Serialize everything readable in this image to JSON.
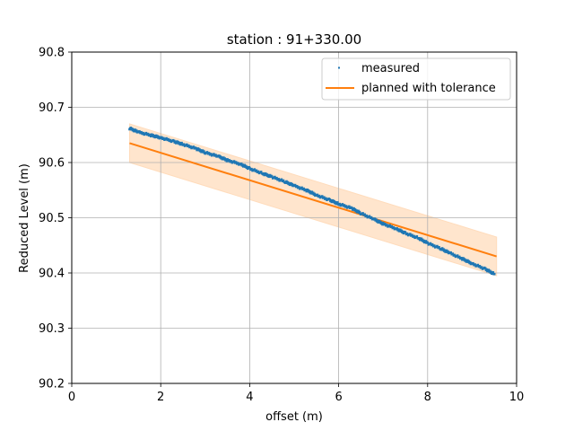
{
  "colors": {
    "measured": "#1f77b4",
    "planned": "#ff7f0e",
    "band": "#ffdcbc",
    "grid": "#b0b0b0"
  },
  "chart_data": {
    "type": "scatter",
    "title": "station : 91+330.00",
    "xlabel": "offset (m)",
    "ylabel": "Reduced Level (m)",
    "xlim": [
      0,
      10
    ],
    "ylim": [
      90.2,
      90.8
    ],
    "xticks": [
      "0",
      "2",
      "4",
      "6",
      "8",
      "10"
    ],
    "yticks": [
      "90.2",
      "90.3",
      "90.4",
      "90.5",
      "90.6",
      "90.7",
      "90.8"
    ],
    "grid": true,
    "legend_position": "top-right",
    "series": [
      {
        "name": "measured",
        "style": "points",
        "x": [
          1.3,
          1.5,
          1.8,
          2.0,
          2.3,
          2.5,
          2.8,
          3.0,
          3.3,
          3.5,
          3.8,
          4.0,
          4.3,
          4.5,
          4.8,
          5.0,
          5.3,
          5.5,
          5.8,
          6.0,
          6.3,
          6.5,
          6.8,
          7.0,
          7.3,
          7.5,
          7.8,
          8.0,
          8.3,
          8.5,
          8.8,
          9.0,
          9.3,
          9.5
        ],
        "y": [
          90.662,
          90.655,
          90.649,
          90.645,
          90.638,
          90.633,
          90.625,
          90.618,
          90.611,
          90.604,
          90.597,
          90.589,
          90.58,
          90.574,
          90.565,
          90.558,
          90.549,
          90.541,
          90.532,
          90.525,
          90.517,
          90.508,
          90.497,
          90.489,
          90.48,
          90.472,
          90.463,
          90.454,
          90.444,
          90.436,
          90.425,
          90.417,
          90.407,
          90.398
        ]
      },
      {
        "name": "planned with tolerance",
        "style": "line-with-band",
        "x": [
          1.3,
          9.55
        ],
        "y": [
          90.635,
          90.43
        ],
        "tolerance": 0.035
      }
    ]
  }
}
